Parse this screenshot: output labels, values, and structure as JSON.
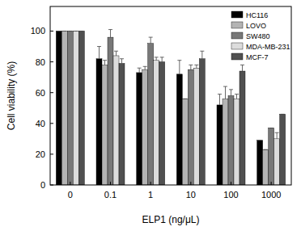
{
  "chart_data": {
    "type": "bar",
    "x_label": "ELP1 (ng/μL)",
    "y_label": "Cell viability (%)",
    "categories": [
      "0",
      "0.1",
      "1",
      "10",
      "100",
      "1000"
    ],
    "series": [
      {
        "name": "HC116",
        "color": "#000000",
        "values": [
          100,
          82,
          73,
          72,
          52,
          29
        ],
        "errors": [
          0,
          8,
          3,
          9,
          7,
          0
        ]
      },
      {
        "name": "LOVO",
        "color": "#b4b4b4",
        "values": [
          100,
          78,
          75,
          56,
          56,
          23
        ],
        "errors": [
          0,
          3,
          2,
          0,
          8,
          0
        ]
      },
      {
        "name": "SW480",
        "color": "#787878",
        "values": [
          100,
          96,
          92,
          75,
          58,
          37
        ],
        "errors": [
          0,
          5,
          4,
          3,
          4,
          0
        ]
      },
      {
        "name": "MDA-MB-231",
        "color": "#dcdcdc",
        "values": [
          100,
          84,
          81,
          76,
          56,
          30
        ],
        "errors": [
          0,
          3,
          2,
          2,
          3,
          4
        ]
      },
      {
        "name": "MCF-7",
        "color": "#505050",
        "values": [
          100,
          79,
          80,
          82,
          74,
          46
        ],
        "errors": [
          0,
          3,
          3,
          5,
          4,
          0
        ]
      }
    ],
    "ylim": [
      0,
      116
    ],
    "yticks": [
      0,
      20,
      40,
      60,
      80,
      100
    ],
    "legend": "upper-right",
    "grid": false
  }
}
